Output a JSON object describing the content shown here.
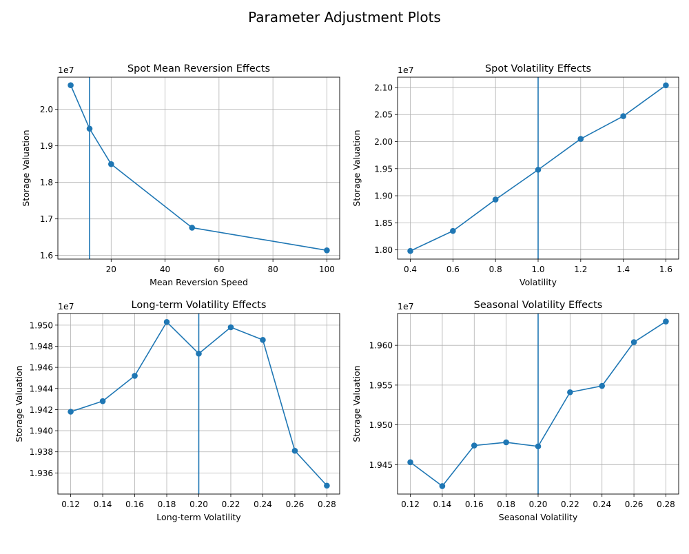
{
  "figure": {
    "suptitle": "Parameter Adjustment Plots"
  },
  "style": {
    "line_color": "#1f77b4",
    "grid_color": "#b0b0b0",
    "axes_color": "#000000"
  },
  "chart_data": [
    {
      "type": "line",
      "title": "Spot Mean Reversion Effects",
      "xlabel": "Mean Reversion Speed",
      "ylabel": "Storage Valuation",
      "y_offset_label": "1e7",
      "x": [
        5,
        12,
        20,
        50,
        100
      ],
      "y": [
        20660000,
        19470000,
        18500000,
        16760000,
        16140000
      ],
      "vline": 12,
      "xlim": [
        0.25,
        104.75
      ],
      "ylim": [
        15900000,
        20880000
      ],
      "xticks": [
        20,
        40,
        60,
        80,
        100
      ],
      "xtick_labels": [
        "20",
        "40",
        "60",
        "80",
        "100"
      ],
      "yticks": [
        16000000,
        17000000,
        18000000,
        19000000,
        20000000
      ],
      "ytick_labels": [
        "1.6",
        "1.7",
        "1.8",
        "1.9",
        "2.0"
      ],
      "grid": true
    },
    {
      "type": "line",
      "title": "Spot Volatility Effects",
      "xlabel": "Volatility",
      "ylabel": "Storage Valuation",
      "y_offset_label": "1e7",
      "x": [
        0.4,
        0.6,
        0.8,
        1.0,
        1.2,
        1.4,
        1.6
      ],
      "y": [
        17980000,
        18350000,
        18930000,
        19480000,
        20050000,
        20470000,
        21040000
      ],
      "vline": 1.0,
      "xlim": [
        0.34,
        1.66
      ],
      "ylim": [
        17830000,
        21190000
      ],
      "xticks": [
        0.4,
        0.6,
        0.8,
        1.0,
        1.2,
        1.4,
        1.6
      ],
      "xtick_labels": [
        "0.4",
        "0.6",
        "0.8",
        "1.0",
        "1.2",
        "1.4",
        "1.6"
      ],
      "yticks": [
        18000000,
        18500000,
        19000000,
        19500000,
        20000000,
        20500000,
        21000000
      ],
      "ytick_labels": [
        "1.80",
        "1.85",
        "1.90",
        "1.95",
        "2.00",
        "2.05",
        "2.10"
      ],
      "grid": true
    },
    {
      "type": "line",
      "title": "Long-term Volatility Effects",
      "xlabel": "Long-term Volatility",
      "ylabel": "Storage Valuation",
      "y_offset_label": "1e7",
      "x": [
        0.12,
        0.14,
        0.16,
        0.18,
        0.2,
        0.22,
        0.24,
        0.26,
        0.28
      ],
      "y": [
        19418000,
        19428000,
        19452000,
        19503000,
        19473000,
        19498000,
        19486000,
        19381000,
        19348000
      ],
      "vline": 0.2,
      "xlim": [
        0.112,
        0.288
      ],
      "ylim": [
        19340000,
        19511000
      ],
      "xticks": [
        0.12,
        0.14,
        0.16,
        0.18,
        0.2,
        0.22,
        0.24,
        0.26,
        0.28
      ],
      "xtick_labels": [
        "0.12",
        "0.14",
        "0.16",
        "0.18",
        "0.20",
        "0.22",
        "0.24",
        "0.26",
        "0.28"
      ],
      "yticks": [
        19360000,
        19380000,
        19400000,
        19420000,
        19440000,
        19460000,
        19480000,
        19500000
      ],
      "ytick_labels": [
        "1.936",
        "1.938",
        "1.940",
        "1.942",
        "1.944",
        "1.946",
        "1.948",
        "1.950"
      ],
      "grid": true
    },
    {
      "type": "line",
      "title": "Seasonal Volatility Effects",
      "xlabel": "Seasonal Volatility",
      "ylabel": "Storage Valuation",
      "y_offset_label": "1e7",
      "x": [
        0.12,
        0.14,
        0.16,
        0.18,
        0.2,
        0.22,
        0.24,
        0.26,
        0.28
      ],
      "y": [
        19453000,
        19423000,
        19474000,
        19478000,
        19473000,
        19541000,
        19549000,
        19604000,
        19630000
      ],
      "vline": 0.2,
      "xlim": [
        0.112,
        0.288
      ],
      "ylim": [
        19413000,
        19640000
      ],
      "xticks": [
        0.12,
        0.14,
        0.16,
        0.18,
        0.2,
        0.22,
        0.24,
        0.26,
        0.28
      ],
      "xtick_labels": [
        "0.12",
        "0.14",
        "0.16",
        "0.18",
        "0.20",
        "0.22",
        "0.24",
        "0.26",
        "0.28"
      ],
      "yticks": [
        19450000,
        19500000,
        19550000,
        19600000
      ],
      "ytick_labels": [
        "1.945",
        "1.950",
        "1.955",
        "1.960"
      ],
      "grid": true
    }
  ]
}
